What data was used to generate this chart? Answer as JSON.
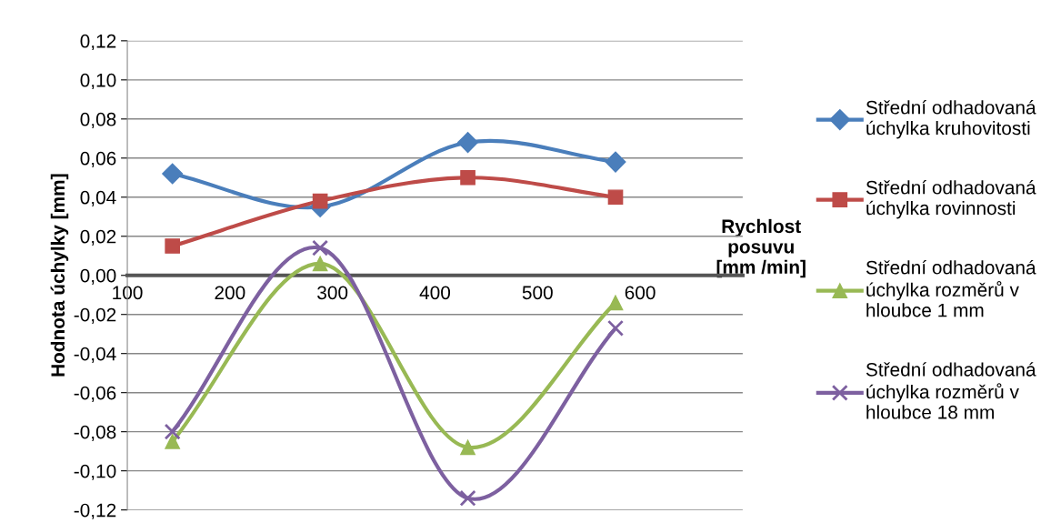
{
  "chart_data": {
    "type": "line",
    "ylabel": "Hodnota úchylky [mm]",
    "xlabel": "Rychlost\nposuvu\n[mm /min]",
    "x": [
      144,
      288,
      432,
      576
    ],
    "series": [
      {
        "name": "Střední odhadovaná\núchylka kruhovitosti",
        "color": "#4a7ebb",
        "marker": "diamond",
        "values": [
          0.052,
          0.035,
          0.068,
          0.058
        ]
      },
      {
        "name": "Střední odhadovaná\núchylka rovinnosti",
        "color": "#be4b48",
        "marker": "square",
        "values": [
          0.015,
          0.038,
          0.05,
          0.04
        ]
      },
      {
        "name": "Střední odhadovaná\núchylka rozměrů v\nhloubce 1 mm",
        "color": "#98b954",
        "marker": "triangle",
        "values": [
          -0.085,
          0.006,
          -0.088,
          -0.014
        ]
      },
      {
        "name": "Střední odhadovaná\núchylka rozměrů v\nhloubce 18 mm",
        "color": "#7d60a0",
        "marker": "cross",
        "values": [
          -0.08,
          0.014,
          -0.114,
          -0.027
        ]
      }
    ],
    "xlim": [
      100,
      700
    ],
    "xticks": [
      100,
      200,
      300,
      400,
      500,
      600
    ],
    "ylim": [
      -0.12,
      0.12
    ],
    "yticks": [
      {
        "value": -0.12,
        "label": "-0,12"
      },
      {
        "value": -0.1,
        "label": "-0,10"
      },
      {
        "value": -0.08,
        "label": "-0,08"
      },
      {
        "value": -0.06,
        "label": "-0,06"
      },
      {
        "value": -0.04,
        "label": "-0,04"
      },
      {
        "value": -0.02,
        "label": "-0,02"
      },
      {
        "value": 0,
        "label": "0,00"
      },
      {
        "value": 0.02,
        "label": "0,02"
      },
      {
        "value": 0.04,
        "label": "0,04"
      },
      {
        "value": 0.06,
        "label": "0,06"
      },
      {
        "value": 0.08,
        "label": "0,08"
      },
      {
        "value": 0.1,
        "label": "0,10"
      },
      {
        "value": 0.12,
        "label": "0,12"
      }
    ],
    "grid": "y",
    "legend": "right"
  }
}
